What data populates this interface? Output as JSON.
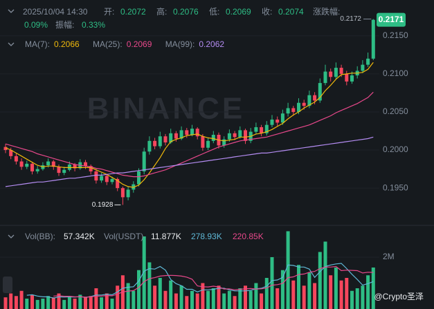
{
  "watermark": "BINANCE",
  "credit": "@Crypto圣泽",
  "chart_data": [
    {
      "type": "candlestick",
      "header": {
        "time": "2025/10/04 14:30",
        "open_label": "开:",
        "open": "0.2072",
        "high_label": "高:",
        "high": "0.2076",
        "low_label": "低:",
        "low": "0.2069",
        "close_label": "收:",
        "close": "0.2074",
        "change_label": "涨跌幅:",
        "change": "0.09%",
        "amp_label": "振幅:",
        "amp": "0.33%"
      },
      "ylim": [
        0.1902,
        0.2197
      ],
      "yticks": [
        {
          "value": 0.195,
          "label": "0.1950"
        },
        {
          "value": 0.2,
          "label": "0.2000"
        },
        {
          "value": 0.205,
          "label": "0.2050"
        },
        {
          "value": 0.21,
          "label": "0.2100"
        },
        {
          "value": 0.215,
          "label": "0.2150"
        }
      ],
      "up_color": "#2ebd85",
      "down_color": "#f6465d",
      "grid": true,
      "candles": [
        [
          0.2004,
          0.2008,
          0.1996,
          0.2
        ],
        [
          0.2,
          0.2003,
          0.1988,
          0.1992
        ],
        [
          0.1992,
          0.1996,
          0.1981,
          0.1985
        ],
        [
          0.1985,
          0.1989,
          0.1974,
          0.1978
        ],
        [
          0.1978,
          0.1986,
          0.1975,
          0.1982
        ],
        [
          0.1982,
          0.1984,
          0.1968,
          0.1972
        ],
        [
          0.1972,
          0.1979,
          0.1969,
          0.1975
        ],
        [
          0.1975,
          0.1984,
          0.1973,
          0.198
        ],
        [
          0.198,
          0.1989,
          0.1977,
          0.1985
        ],
        [
          0.1985,
          0.1987,
          0.1974,
          0.1978
        ],
        [
          0.1978,
          0.1981,
          0.1966,
          0.197
        ],
        [
          0.197,
          0.1978,
          0.1967,
          0.1974
        ],
        [
          0.1974,
          0.1985,
          0.1972,
          0.1981
        ],
        [
          0.1981,
          0.1983,
          0.1972,
          0.1976
        ],
        [
          0.1976,
          0.1988,
          0.1974,
          0.1984
        ],
        [
          0.1984,
          0.1987,
          0.1975,
          0.1979
        ],
        [
          0.1979,
          0.1981,
          0.1968,
          0.1972
        ],
        [
          0.1972,
          0.1975,
          0.1956,
          0.196
        ],
        [
          0.196,
          0.197,
          0.1957,
          0.1966
        ],
        [
          0.1966,
          0.1968,
          0.1954,
          0.1958
        ],
        [
          0.1958,
          0.1965,
          0.1955,
          0.1962
        ],
        [
          0.1962,
          0.1964,
          0.1946,
          0.195
        ],
        [
          0.195,
          0.1952,
          0.1928,
          0.1938
        ],
        [
          0.1938,
          0.1952,
          0.1934,
          0.1948
        ],
        [
          0.1948,
          0.1959,
          0.1944,
          0.1955
        ],
        [
          0.1955,
          0.1976,
          0.1952,
          0.1972
        ],
        [
          0.1972,
          0.2003,
          0.1968,
          0.1998
        ],
        [
          0.1998,
          0.2018,
          0.1994,
          0.2012
        ],
        [
          0.2012,
          0.2016,
          0.2001,
          0.2005
        ],
        [
          0.2005,
          0.2024,
          0.2002,
          0.2018
        ],
        [
          0.2018,
          0.2021,
          0.2006,
          0.201
        ],
        [
          0.201,
          0.2028,
          0.2008,
          0.2022
        ],
        [
          0.2022,
          0.2025,
          0.2011,
          0.2015
        ],
        [
          0.2015,
          0.2031,
          0.2013,
          0.2026
        ],
        [
          0.2026,
          0.2029,
          0.2016,
          0.202
        ],
        [
          0.202,
          0.2033,
          0.2018,
          0.2028
        ],
        [
          0.2028,
          0.203,
          0.2014,
          0.2018
        ],
        [
          0.2018,
          0.2021,
          0.1999,
          0.2003
        ],
        [
          0.2003,
          0.2016,
          0.2,
          0.2012
        ],
        [
          0.2012,
          0.2025,
          0.2009,
          0.202
        ],
        [
          0.202,
          0.2023,
          0.2002,
          0.2006
        ],
        [
          0.2006,
          0.2018,
          0.2003,
          0.2014
        ],
        [
          0.2014,
          0.2027,
          0.2011,
          0.2022
        ],
        [
          0.2022,
          0.2025,
          0.2013,
          0.2017
        ],
        [
          0.2017,
          0.2031,
          0.2015,
          0.2026
        ],
        [
          0.2026,
          0.2028,
          0.2008,
          0.2012
        ],
        [
          0.2012,
          0.2029,
          0.2009,
          0.2024
        ],
        [
          0.2024,
          0.2036,
          0.2021,
          0.203
        ],
        [
          0.203,
          0.2033,
          0.2018,
          0.2022
        ],
        [
          0.2022,
          0.2038,
          0.2019,
          0.2033
        ],
        [
          0.2033,
          0.2046,
          0.203,
          0.204
        ],
        [
          0.204,
          0.2044,
          0.2031,
          0.2036
        ],
        [
          0.2036,
          0.2053,
          0.2033,
          0.2048
        ],
        [
          0.2048,
          0.2062,
          0.2044,
          0.2055
        ],
        [
          0.2055,
          0.2058,
          0.2045,
          0.205
        ],
        [
          0.205,
          0.2068,
          0.2047,
          0.2062
        ],
        [
          0.2062,
          0.2066,
          0.2053,
          0.2058
        ],
        [
          0.2058,
          0.2078,
          0.2055,
          0.2072
        ],
        [
          0.2072,
          0.2076,
          0.206,
          0.2065
        ],
        [
          0.2065,
          0.2094,
          0.2062,
          0.2088
        ],
        [
          0.2088,
          0.2112,
          0.2085,
          0.2103
        ],
        [
          0.2103,
          0.2107,
          0.209,
          0.2096
        ],
        [
          0.2096,
          0.2115,
          0.2093,
          0.2108
        ],
        [
          0.2108,
          0.2112,
          0.2096,
          0.21
        ],
        [
          0.21,
          0.2104,
          0.2085,
          0.209
        ],
        [
          0.209,
          0.2103,
          0.2087,
          0.2098
        ],
        [
          0.2098,
          0.211,
          0.2094,
          0.2104
        ],
        [
          0.2104,
          0.2118,
          0.2101,
          0.2112
        ],
        [
          0.2112,
          0.2128,
          0.2109,
          0.212
        ],
        [
          0.212,
          0.2172,
          0.2118,
          0.2171
        ]
      ],
      "ma": [
        {
          "name": "MA(7):",
          "last": "0.2066",
          "color": "#f0b90b",
          "values": [
            0.2003,
            0.2,
            0.1996,
            0.1992,
            0.1988,
            0.1984,
            0.198,
            0.1978,
            0.1979,
            0.1979,
            0.1978,
            0.1977,
            0.1977,
            0.1977,
            0.1977,
            0.1977,
            0.1977,
            0.1974,
            0.1971,
            0.1968,
            0.1964,
            0.196,
            0.1955,
            0.1952,
            0.1951,
            0.1954,
            0.1961,
            0.197,
            0.198,
            0.199,
            0.2002,
            0.2011,
            0.2014,
            0.2016,
            0.2019,
            0.202,
            0.2021,
            0.2018,
            0.2016,
            0.2015,
            0.2013,
            0.2012,
            0.2013,
            0.2014,
            0.2017,
            0.2017,
            0.2018,
            0.2021,
            0.2022,
            0.2024,
            0.2027,
            0.2031,
            0.2035,
            0.2041,
            0.2046,
            0.205,
            0.2055,
            0.2059,
            0.2063,
            0.2069,
            0.2078,
            0.2085,
            0.2093,
            0.2099,
            0.21,
            0.2101,
            0.2101,
            0.2102,
            0.2106,
            0.2115
          ]
        },
        {
          "name": "MA(25):",
          "last": "0.2069",
          "color": "#e8488b",
          "values": [
            0.2008,
            0.2006,
            0.2004,
            0.2002,
            0.2,
            0.1998,
            0.1995,
            0.1993,
            0.1991,
            0.1989,
            0.1987,
            0.1985,
            0.1983,
            0.1981,
            0.198,
            0.1979,
            0.1978,
            0.1976,
            0.1975,
            0.1973,
            0.1971,
            0.1969,
            0.1967,
            0.1966,
            0.1965,
            0.1965,
            0.1966,
            0.1968,
            0.197,
            0.1972,
            0.1974,
            0.1977,
            0.198,
            0.1983,
            0.1986,
            0.1989,
            0.1992,
            0.1995,
            0.1998,
            0.2001,
            0.2004,
            0.2006,
            0.2008,
            0.201,
            0.2012,
            0.2013,
            0.2014,
            0.2015,
            0.2016,
            0.2017,
            0.2019,
            0.2021,
            0.2023,
            0.2025,
            0.2027,
            0.2029,
            0.2031,
            0.2033,
            0.2036,
            0.2039,
            0.2042,
            0.2045,
            0.2049,
            0.2052,
            0.2055,
            0.2058,
            0.2061,
            0.2065,
            0.2069,
            0.2076
          ]
        },
        {
          "name": "MA(99):",
          "last": "0.2062",
          "color": "#b48cf2",
          "values": [
            0.1952,
            0.1953,
            0.1954,
            0.1955,
            0.1956,
            0.1957,
            0.1958,
            0.1958,
            0.1959,
            0.196,
            0.1961,
            0.1962,
            0.1963,
            0.1963,
            0.1964,
            0.1965,
            0.1966,
            0.1967,
            0.1967,
            0.1968,
            0.1969,
            0.197,
            0.197,
            0.1971,
            0.1972,
            0.1973,
            0.1974,
            0.1975,
            0.1976,
            0.1977,
            0.1978,
            0.1979,
            0.198,
            0.1981,
            0.1982,
            0.1983,
            0.1984,
            0.1985,
            0.1986,
            0.1987,
            0.1988,
            0.1989,
            0.199,
            0.1991,
            0.1992,
            0.1993,
            0.1994,
            0.1995,
            0.1996,
            0.1996,
            0.1997,
            0.1998,
            0.1999,
            0.2,
            0.2001,
            0.2002,
            0.2003,
            0.2004,
            0.2005,
            0.2006,
            0.2007,
            0.2008,
            0.2009,
            0.201,
            0.2011,
            0.2012,
            0.2013,
            0.2014,
            0.2015,
            0.2017
          ]
        }
      ]
    },
    {
      "type": "bar",
      "labels": {
        "vol_label": "Vol(BB):",
        "vol": "57.342K",
        "usdt_label": "Vol(USDT)",
        "usdt": "11.877K"
      },
      "ylim": [
        0,
        3200000
      ],
      "yticks": [
        {
          "value": 2000000,
          "label": "2M"
        }
      ],
      "values": [
        450000,
        600000,
        500000,
        700000,
        400000,
        550000,
        350000,
        400000,
        500000,
        450000,
        600000,
        350000,
        500000,
        400000,
        550000,
        450000,
        500000,
        800000,
        450000,
        600000,
        400000,
        900000,
        1300000,
        1000000,
        700000,
        1500000,
        2800000,
        1800000,
        900000,
        1200000,
        700000,
        1100000,
        600000,
        900000,
        500000,
        700000,
        600000,
        1000000,
        700000,
        800000,
        900000,
        600000,
        700000,
        500000,
        800000,
        900000,
        700000,
        1000000,
        600000,
        1200000,
        2000000,
        800000,
        1500000,
        3000000,
        1100000,
        1700000,
        900000,
        1400000,
        1000000,
        2200000,
        2600000,
        1300000,
        1600000,
        1100000,
        1200000,
        700000,
        800000,
        900000,
        1300000,
        1600000
      ],
      "ma": [
        {
          "name": "278.93K",
          "color": "#5fb8d6",
          "values": [
            null,
            null,
            null,
            null,
            530000,
            550000,
            500000,
            470000,
            470000,
            420000,
            470000,
            460000,
            470000,
            460000,
            480000,
            450000,
            480000,
            540000,
            540000,
            570000,
            550000,
            660000,
            800000,
            840000,
            860000,
            1080000,
            1460000,
            1560000,
            1540000,
            1640000,
            1500000,
            1140000,
            980000,
            900000,
            760000,
            760000,
            660000,
            740000,
            740000,
            760000,
            800000,
            800000,
            740000,
            700000,
            700000,
            700000,
            720000,
            780000,
            800000,
            880000,
            1100000,
            1120000,
            1220000,
            1700000,
            1680000,
            1620000,
            1620000,
            1540000,
            1220000,
            1440000,
            1640000,
            1700000,
            1740000,
            1760000,
            1560000,
            1340000,
            1140000,
            920000,
            980000,
            1060000
          ]
        },
        {
          "name": "220.85K",
          "color": "#e8488b",
          "values": [
            null,
            null,
            null,
            null,
            null,
            null,
            null,
            null,
            null,
            500000,
            510000,
            490000,
            490000,
            470000,
            470000,
            460000,
            470000,
            500000,
            500000,
            520000,
            510000,
            580000,
            660000,
            690000,
            710000,
            830000,
            1060000,
            1170000,
            1210000,
            1270000,
            1290000,
            1300000,
            1290000,
            1270000,
            1230000,
            1150000,
            890000,
            860000,
            850000,
            880000,
            850000,
            770000,
            780000,
            740000,
            760000,
            780000,
            790000,
            770000,
            780000,
            810000,
            920000,
            940000,
            990000,
            1210000,
            1240000,
            1330000,
            1350000,
            1420000,
            1450000,
            1560000,
            1620000,
            1620000,
            1640000,
            1480000,
            1500000,
            1490000,
            1480000,
            1390000,
            1420000,
            1410000
          ]
        }
      ]
    }
  ]
}
